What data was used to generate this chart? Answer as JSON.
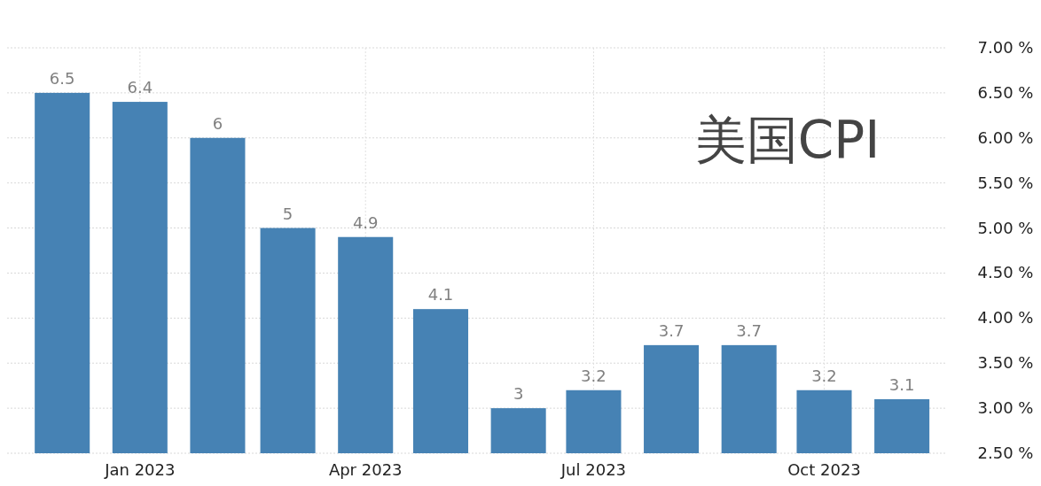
{
  "chart_data": {
    "type": "bar",
    "title": "美国CPI",
    "x": [
      "2022-12",
      "2023-01",
      "2023-02",
      "2023-03",
      "2023-04",
      "2023-05",
      "2023-06",
      "2023-07",
      "2023-08",
      "2023-09",
      "2023-10",
      "2023-11"
    ],
    "values": [
      6.5,
      6.4,
      6,
      5,
      4.9,
      4.1,
      3,
      3.2,
      3.7,
      3.7,
      3.2,
      3.1
    ],
    "color": "#4682b4",
    "xlim": [
      "2022-11-09",
      "2023-11-19"
    ],
    "xticks": [
      {
        "value": "2023-01",
        "label": "Jan 2023"
      },
      {
        "value": "2023-04",
        "label": "Apr 2023"
      },
      {
        "value": "2023-07",
        "label": "Jul 2023"
      },
      {
        "value": "2023-10",
        "label": "Oct 2023"
      }
    ],
    "ylim": [
      2.5,
      7
    ],
    "yticks": [
      {
        "value": 2.5,
        "label": "2.50 %"
      },
      {
        "value": 3,
        "label": "3.00 %"
      },
      {
        "value": 3.5,
        "label": "3.50 %"
      },
      {
        "value": 4,
        "label": "4.00 %"
      },
      {
        "value": 4.5,
        "label": "4.50 %"
      },
      {
        "value": 5,
        "label": "5.00 %"
      },
      {
        "value": 5.5,
        "label": "5.50 %"
      },
      {
        "value": 6,
        "label": "6.00 %"
      },
      {
        "value": 6.5,
        "label": "6.50 %"
      },
      {
        "value": 7,
        "label": "7.00 %"
      }
    ],
    "grid": true,
    "data_labels": true
  }
}
